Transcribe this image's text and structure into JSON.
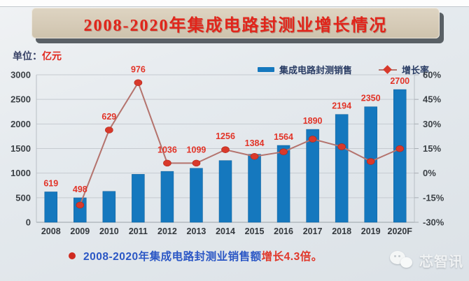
{
  "page": {
    "title": "2008-2020年集成电路封测业增长情况",
    "unit_prefix": "单位：",
    "unit_value": "亿元",
    "caption_blue": "2008-2020年集成电路封测业销售额",
    "caption_red": "增长4.3倍。",
    "watermark": "芯智讯"
  },
  "legend": [
    {
      "label": "集成电路封测销售",
      "swatch": "bar-swatch-icon",
      "color": "#1578be"
    },
    {
      "label": "增长率",
      "swatch": "line-diamond-swatch-icon",
      "color": "#d8392b"
    }
  ],
  "colors": {
    "bar": "#1578be",
    "line": "#b4736d",
    "marker": "#d8392b",
    "value_label": "#e23327",
    "axis_text": "#3c4146",
    "grid": "#c5cad0",
    "title_red": "#e1251b"
  },
  "chart_data": {
    "type": "bar",
    "subtype": "bar-line-combo",
    "title": "2008-2020年集成电路封测业增长情况",
    "unit": "亿元",
    "categories": [
      "2008",
      "2009",
      "2010",
      "2011",
      "2012",
      "2013",
      "2014",
      "2015",
      "2016",
      "2017",
      "2018",
      "2019",
      "2020F"
    ],
    "series": [
      {
        "name": "集成电路封测销售",
        "type": "bar",
        "axis": "left",
        "unit": "亿元",
        "values": [
          619,
          498,
          629,
          976,
          1036,
          1099,
          1256,
          1384,
          1564,
          1890,
          2194,
          2350,
          2700
        ]
      },
      {
        "name": "增长率",
        "type": "line",
        "axis": "right",
        "unit": "%",
        "values": [
          null,
          -19.5,
          26.3,
          55.2,
          6.1,
          6.1,
          14.3,
          10.2,
          13.0,
          20.8,
          16.1,
          7.1,
          14.9
        ]
      }
    ],
    "left_axis": {
      "min": 0,
      "max": 3000,
      "step": 500,
      "ticks": [
        "0",
        "500",
        "1000",
        "1500",
        "2000",
        "2500",
        "3000"
      ]
    },
    "right_axis": {
      "min": -30,
      "max": 60,
      "step": 15,
      "suffix": "%",
      "ticks": [
        "-30%",
        "-15%",
        "0%",
        "15%",
        "30%",
        "45%",
        "60%"
      ]
    },
    "grid": true,
    "legend_position": "top-right"
  }
}
